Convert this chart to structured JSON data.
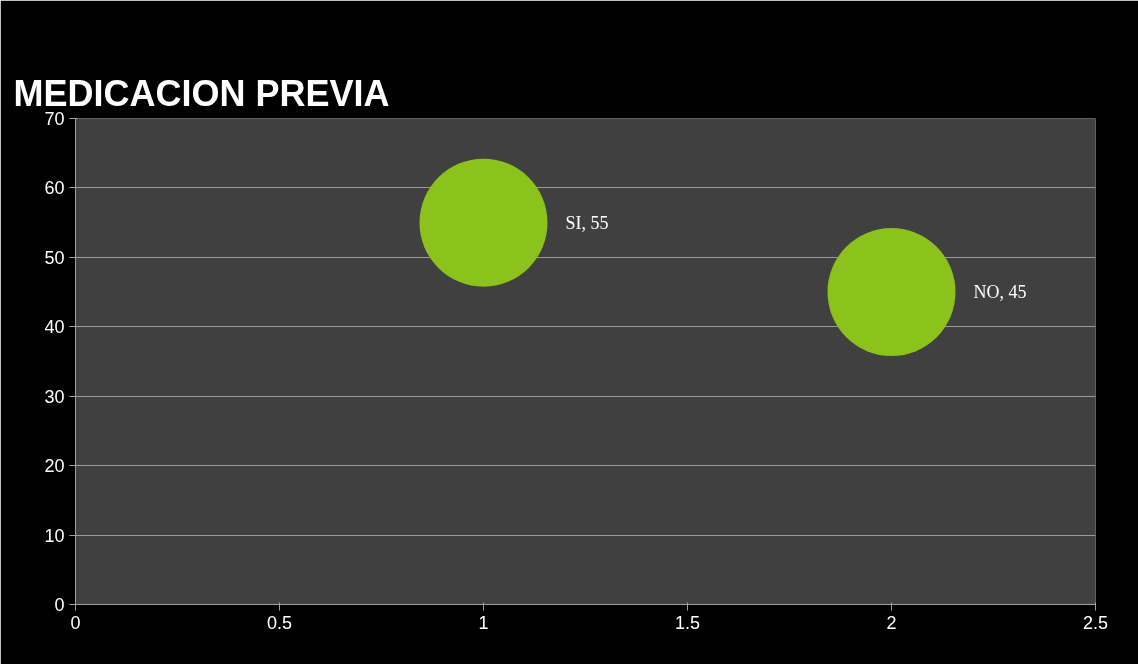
{
  "chart_data": {
    "type": "bubble",
    "title": "MEDICACION PREVIA",
    "x": [
      1,
      2
    ],
    "series": [
      {
        "color": "#8cc21c",
        "values": [
          55,
          45
        ],
        "sizes": [
          1,
          1
        ],
        "value_labels": [
          "SI, 55",
          "NO, 45"
        ]
      }
    ],
    "xlim": [
      0,
      2.5
    ],
    "xticks": [
      0,
      0.5,
      1,
      1.5,
      2,
      2.5
    ],
    "ylim": [
      0,
      70
    ],
    "yticks": [
      0,
      10,
      20,
      30,
      40,
      50,
      60,
      70
    ],
    "grid": "y"
  }
}
